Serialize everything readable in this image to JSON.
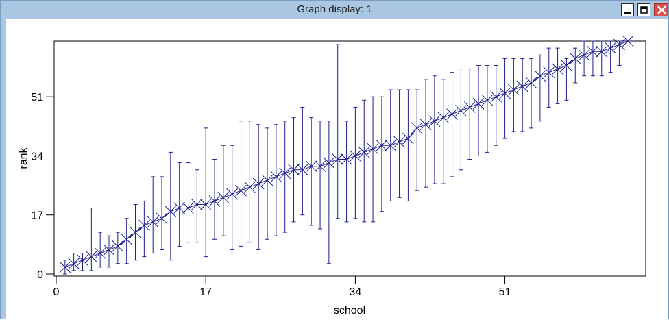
{
  "window": {
    "title": "Graph display: 1"
  },
  "icons": {
    "minimize": "minimize-icon",
    "maximize": "maximize-icon",
    "close": "close-icon"
  },
  "colors": {
    "series": "#1f1f8f",
    "frame": "#000000",
    "titlebar": "#a9c6e3",
    "close_button": "#d9534a"
  },
  "chart_data": {
    "type": "scatter",
    "xlabel": "school",
    "ylabel": "rank",
    "xlim": [
      0,
      66
    ],
    "ylim": [
      0,
      67
    ],
    "x_ticks": [
      0,
      17,
      34,
      51
    ],
    "y_ticks": [
      0,
      17,
      34,
      51
    ],
    "grid": false,
    "marker": "x",
    "error_bars": true,
    "series": [
      {
        "x": [
          1,
          2,
          3,
          4,
          5,
          6,
          7,
          8,
          9,
          10,
          11,
          12,
          13,
          14,
          15,
          16,
          17,
          18,
          19,
          20,
          21,
          22,
          23,
          24,
          25,
          26,
          27,
          28,
          29,
          30,
          31,
          32,
          33,
          34,
          35,
          36,
          37,
          38,
          39,
          40,
          41,
          42,
          43,
          44,
          45,
          46,
          47,
          48,
          49,
          50,
          51,
          52,
          53,
          54,
          55,
          56,
          57,
          58,
          59,
          60,
          61,
          62,
          63,
          64,
          65
        ],
        "y": [
          2,
          3,
          4,
          5,
          6,
          7,
          8,
          10,
          12,
          14,
          15,
          16,
          18,
          19,
          19,
          20,
          20,
          21,
          22,
          23,
          24,
          25,
          26,
          27,
          28,
          29,
          30,
          30,
          31,
          31,
          32,
          33,
          33,
          34,
          35,
          36,
          37,
          37,
          38,
          39,
          42,
          43,
          44,
          45,
          46,
          47,
          48,
          49,
          50,
          51,
          52,
          53,
          54,
          55,
          57,
          58,
          59,
          60,
          62,
          63,
          64,
          64,
          65,
          66,
          67
        ],
        "lower": [
          0,
          1,
          1,
          1,
          2,
          2,
          3,
          3,
          4,
          5,
          6,
          7,
          4,
          8,
          9,
          9,
          5,
          10,
          11,
          7,
          8,
          9,
          7,
          10,
          11,
          12,
          15,
          17,
          14,
          13,
          3,
          16,
          15,
          16,
          15,
          15,
          18,
          21,
          22,
          21,
          24,
          25,
          26,
          26,
          28,
          30,
          33,
          34,
          35,
          37,
          39,
          41,
          41,
          42,
          44,
          48,
          49,
          50,
          55,
          57,
          57,
          57,
          58,
          60,
          67
        ],
        "upper": [
          4,
          6,
          6,
          19,
          12,
          11,
          12,
          16,
          20,
          21,
          28,
          28,
          35,
          32,
          32,
          30,
          42,
          33,
          37,
          37,
          44,
          44,
          43,
          42,
          43,
          44,
          45,
          48,
          45,
          44,
          44,
          66,
          44,
          48,
          50,
          51,
          51,
          53,
          53,
          53,
          53,
          56,
          57,
          56,
          58,
          59,
          59,
          60,
          60,
          60,
          62,
          62,
          62,
          62,
          63,
          65,
          65,
          62,
          65,
          67,
          67,
          67,
          67,
          67,
          67
        ]
      }
    ]
  }
}
